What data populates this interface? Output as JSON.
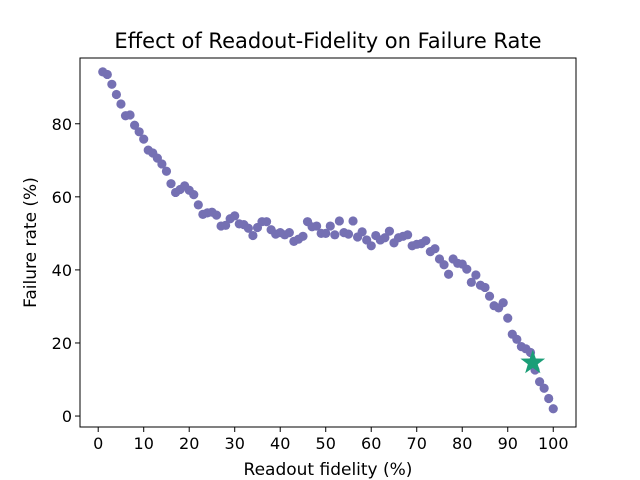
{
  "chart_data": {
    "type": "scatter",
    "title": "Effect of Readout-Fidelity on Failure Rate",
    "xlabel": "Readout fidelity (%)",
    "ylabel": "Failure rate (%)",
    "xlim": [
      -4,
      105
    ],
    "ylim": [
      -3,
      98
    ],
    "xticks": [
      0,
      10,
      20,
      30,
      40,
      50,
      60,
      70,
      80,
      90,
      100
    ],
    "yticks": [
      0,
      20,
      40,
      60,
      80
    ],
    "grid": false,
    "legend": "none",
    "colors": {
      "points": "#7570b3",
      "highlight": "#1b9e77"
    },
    "series": [
      {
        "marker": "circle",
        "x": [
          1,
          2,
          3,
          4,
          5,
          6,
          7,
          8,
          9,
          10,
          11,
          12,
          13,
          14,
          15,
          16,
          17,
          18,
          19,
          20,
          21,
          22,
          23,
          24,
          25,
          26,
          27,
          28,
          29,
          30,
          31,
          32,
          33,
          34,
          35,
          36,
          37,
          38,
          39,
          40,
          41,
          42,
          43,
          44,
          45,
          46,
          47,
          48,
          49,
          50,
          51,
          52,
          53,
          54,
          55,
          56,
          57,
          58,
          59,
          60,
          61,
          62,
          63,
          64,
          65,
          66,
          67,
          68,
          69,
          70,
          71,
          72,
          73,
          74,
          75,
          76,
          77,
          78,
          79,
          80,
          81,
          82,
          83,
          84,
          85,
          86,
          87,
          88,
          89,
          90,
          91,
          92,
          93,
          94,
          95,
          96,
          97,
          98,
          99,
          100
        ],
        "y": [
          94.2,
          93.5,
          90.8,
          88.0,
          85.4,
          82.2,
          82.4,
          79.6,
          77.8,
          75.8,
          72.8,
          72.0,
          70.6,
          69.0,
          67.0,
          63.6,
          61.2,
          62.0,
          63.0,
          61.8,
          60.6,
          57.8,
          55.2,
          55.6,
          55.8,
          55.0,
          52.0,
          52.2,
          54.0,
          54.8,
          52.6,
          52.4,
          51.4,
          49.4,
          51.6,
          53.2,
          53.2,
          51.0,
          49.8,
          50.2,
          49.6,
          50.2,
          47.8,
          48.4,
          49.2,
          53.2,
          51.8,
          52.0,
          50.0,
          50.0,
          52.0,
          49.6,
          53.4,
          50.2,
          49.8,
          53.4,
          49.0,
          50.4,
          48.2,
          46.6,
          49.4,
          48.2,
          48.8,
          50.6,
          47.4,
          48.8,
          49.2,
          49.6,
          46.6,
          47.0,
          47.2,
          48.0,
          45.0,
          45.8,
          43.0,
          41.4,
          38.8,
          43.0,
          41.8,
          41.6,
          40.2,
          36.6,
          38.6,
          35.8,
          35.2,
          32.8,
          30.2,
          29.6,
          31.0,
          26.8,
          22.4,
          21.0,
          19.0,
          18.4,
          17.4,
          12.6,
          9.4,
          7.6,
          4.8,
          2.0
        ]
      },
      {
        "marker": "star",
        "x": [
          95.5
        ],
        "y": [
          14.6
        ]
      }
    ]
  }
}
